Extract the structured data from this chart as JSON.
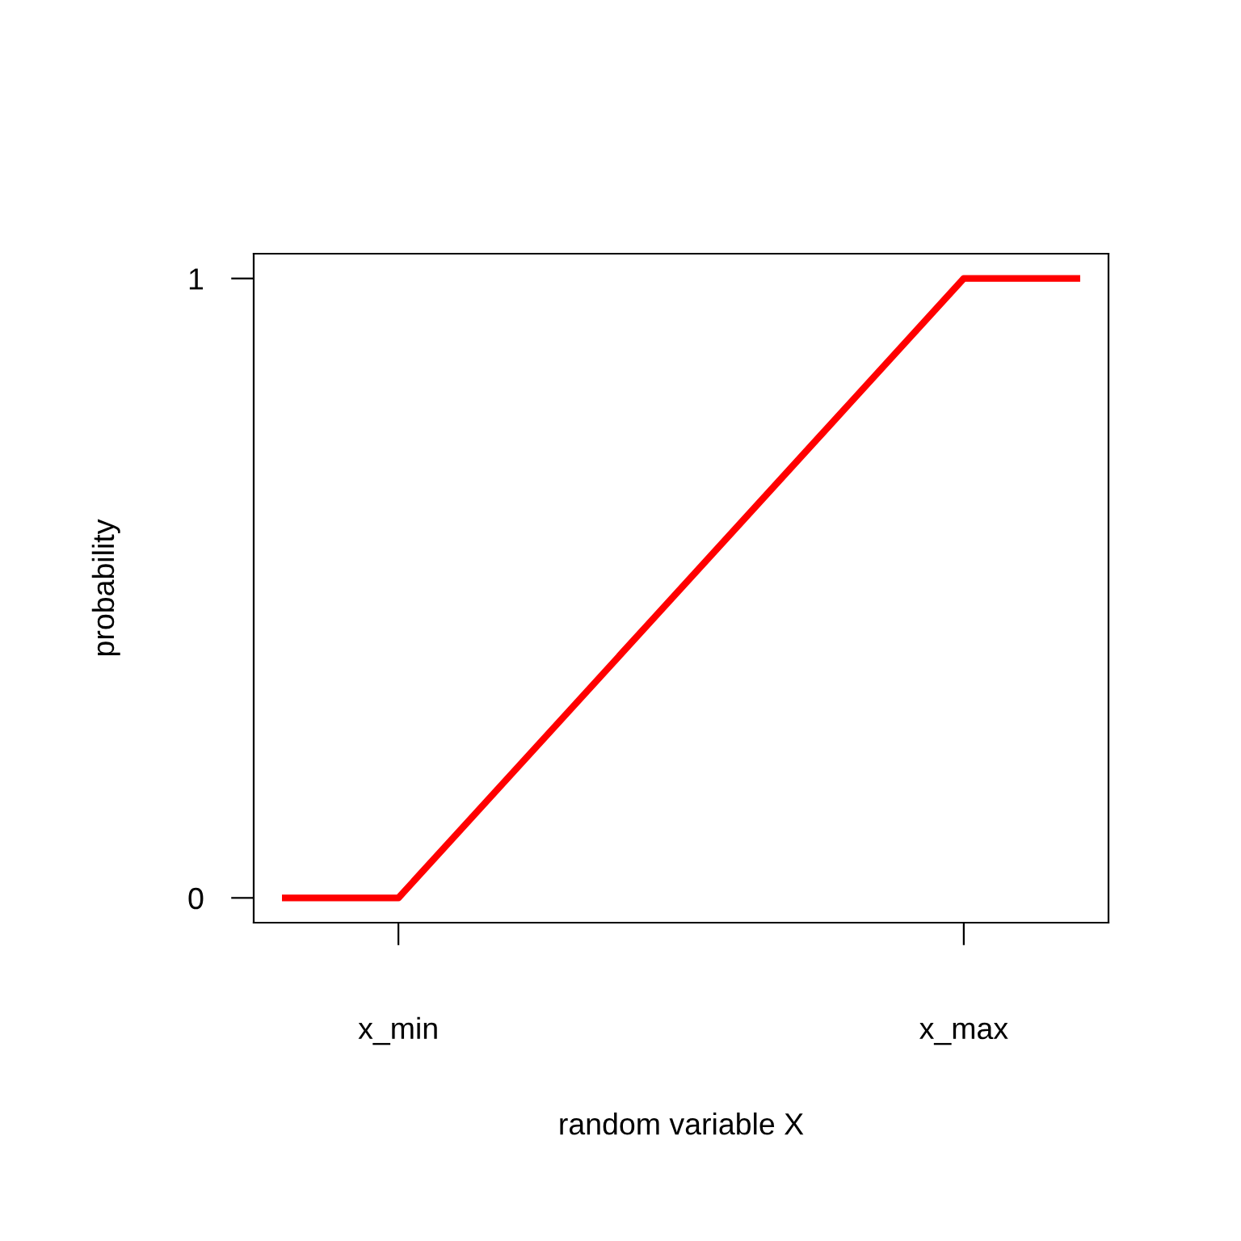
{
  "chart_data": {
    "type": "line",
    "xlabel": "random variable X",
    "ylabel": "probability",
    "categories": [
      null,
      "x_min",
      null,
      null,
      null,
      null,
      "x_max",
      null
    ],
    "series": [
      {
        "color": "#ff0000",
        "values": [
          0,
          0,
          0.2,
          0.4,
          0.6,
          0.8,
          1,
          1
        ]
      }
    ],
    "ylim": [
      -0.04,
      1.04
    ],
    "yticks": [
      0,
      1
    ],
    "grid": false,
    "legend": false,
    "marker": "none",
    "line_style": "solid"
  }
}
